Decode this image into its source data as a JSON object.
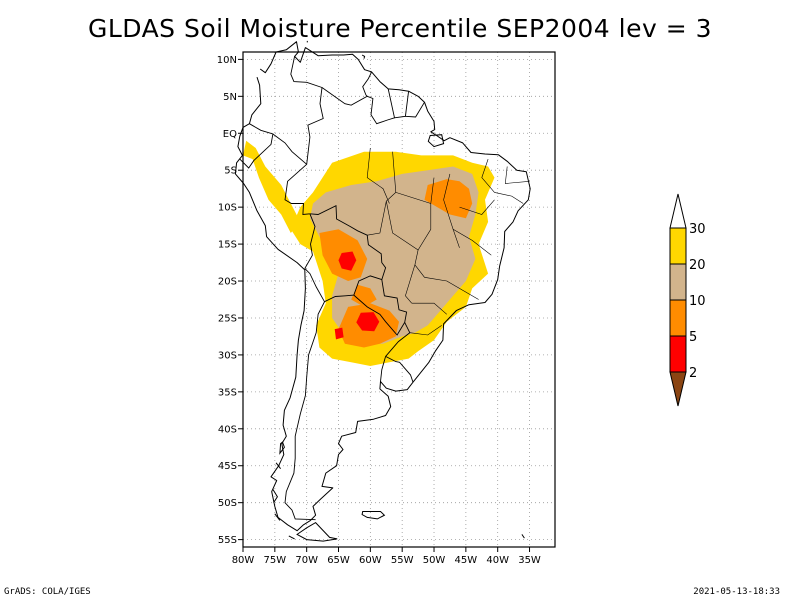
{
  "title": "GLDAS Soil Moisture Percentile SEP2004 lev = 3",
  "footer": {
    "left": "GrADS: COLA/IGES",
    "right": "2021-05-13-18:33"
  },
  "colors": {
    "c_lt2": "#8b4513",
    "c_2_5": "#ff0000",
    "c_5_10": "#ff8c00",
    "c_10_20": "#d2b48c",
    "c_20_30": "#ffd700",
    "c_gt30": "#ffffff"
  },
  "chart_data": {
    "type": "heatmap",
    "title": "GLDAS Soil Moisture Percentile SEP2004 lev = 3",
    "projection": "lat-lon",
    "xlim": [
      -80,
      -31
    ],
    "ylim": [
      -56,
      11
    ],
    "x_ticks": [
      "80W",
      "75W",
      "70W",
      "65W",
      "60W",
      "55W",
      "50W",
      "45W",
      "40W",
      "35W"
    ],
    "y_ticks": [
      "10N",
      "5N",
      "EQ",
      "5S",
      "10S",
      "15S",
      "20S",
      "25S",
      "30S",
      "35S",
      "40S",
      "45S",
      "50S",
      "55S"
    ],
    "grid": true,
    "legend": {
      "placement": "right",
      "levels": [
        "2",
        "5",
        "10",
        "20",
        "30"
      ],
      "bins": [
        {
          "range": "<2",
          "color": "#8b4513"
        },
        {
          "range": "2-5",
          "color": "#ff0000"
        },
        {
          "range": "5-10",
          "color": "#ff8c00"
        },
        {
          "range": "10-20",
          "color": "#d2b48c"
        },
        {
          "range": "20-30",
          "color": "#ffd700"
        },
        {
          "range": ">30",
          "color": "#ffffff"
        }
      ]
    },
    "regions": [
      {
        "name": "amazon-northern-arc",
        "class": "20-30",
        "lon": [
          -64,
          -45
        ],
        "lat": [
          -2,
          -8
        ]
      },
      {
        "name": "western-andes-fringe",
        "class": "20-30",
        "lon": [
          -79,
          -69
        ],
        "lat": [
          -2,
          -15
        ]
      },
      {
        "name": "central-brazil-core",
        "class": "10-20",
        "lon": [
          -67,
          -43
        ],
        "lat": [
          -8,
          -24
        ]
      },
      {
        "name": "northeast-brazil-patch",
        "class": "5-10",
        "lon": [
          -53,
          -43
        ],
        "lat": [
          -6,
          -12
        ]
      },
      {
        "name": "bolivia-lowlands-patch",
        "class": "5-10",
        "lon": [
          -68,
          -60
        ],
        "lat": [
          -14,
          -20
        ]
      },
      {
        "name": "bolivia-red-core",
        "class": "2-5",
        "lon": [
          -65,
          -62
        ],
        "lat": [
          -16,
          -19
        ]
      },
      {
        "name": "chaco-paraguay-patch",
        "class": "5-10",
        "lon": [
          -65,
          -55
        ],
        "lat": [
          -22,
          -30
        ]
      },
      {
        "name": "paraguay-red-core",
        "class": "2-5",
        "lon": [
          -62,
          -58
        ],
        "lat": [
          -24,
          -27
        ]
      },
      {
        "name": "argentina-southern-fringe",
        "class": "20-30",
        "lon": [
          -68,
          -53
        ],
        "lat": [
          -24,
          -32
        ]
      },
      {
        "name": "southeast-brazil-patch",
        "class": "20-30",
        "lon": [
          -53,
          -42
        ],
        "lat": [
          -19,
          -27
        ]
      }
    ]
  }
}
